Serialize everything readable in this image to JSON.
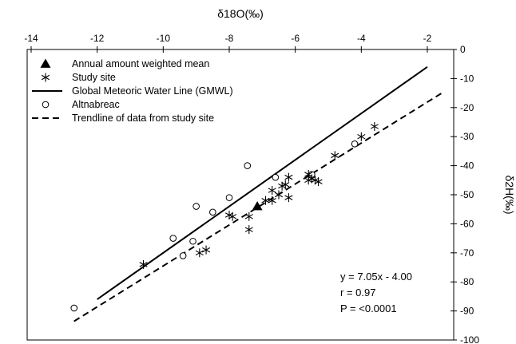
{
  "chart_data": {
    "type": "scatter",
    "xlabel": "δ18O(‰)",
    "ylabel": "δ2H(‰)",
    "x_axis_position": "top",
    "y_axis_position": "right",
    "xlim": [
      -14,
      -2
    ],
    "ylim": [
      -100,
      0
    ],
    "xticks": [
      "-14",
      "-12",
      "-10",
      "-8",
      "-6",
      "-4",
      "-2"
    ],
    "yticks": [
      "0",
      "-10",
      "-20",
      "-30",
      "-40",
      "-50",
      "-60",
      "-70",
      "-80",
      "-90",
      "-100"
    ],
    "grid": false,
    "legend_position": "top-left",
    "legend": [
      {
        "label": "Annual amount weighted mean",
        "marker": "filled-triangle"
      },
      {
        "label": "Study site",
        "marker": "asterisk"
      },
      {
        "label": "Global Meteoric Water Line (GMWL)",
        "marker": "solid-line"
      },
      {
        "label": "Altnabreac",
        "marker": "open-circle"
      },
      {
        "label": "Trendline of data from study site",
        "marker": "dashed-line"
      }
    ],
    "series": [
      {
        "name": "Annual amount weighted mean",
        "marker": "filled-triangle",
        "points": [
          [
            -7.15,
            -54
          ]
        ]
      },
      {
        "name": "Study site",
        "marker": "asterisk",
        "points": [
          [
            -10.6,
            -74
          ],
          [
            -8.9,
            -70
          ],
          [
            -8.7,
            -69
          ],
          [
            -8.0,
            -57
          ],
          [
            -7.9,
            -57.5
          ],
          [
            -7.4,
            -57.5
          ],
          [
            -7.4,
            -62
          ],
          [
            -6.9,
            -52
          ],
          [
            -6.7,
            -48.5
          ],
          [
            -6.7,
            -52
          ],
          [
            -6.5,
            -50
          ],
          [
            -6.4,
            -47
          ],
          [
            -6.3,
            -46.5
          ],
          [
            -6.2,
            -44
          ],
          [
            -6.2,
            -51
          ],
          [
            -5.6,
            -43
          ],
          [
            -5.6,
            -45
          ],
          [
            -5.5,
            -44.5
          ],
          [
            -5.4,
            -45
          ],
          [
            -5.3,
            -45.5
          ],
          [
            -4.8,
            -36.5
          ],
          [
            -4.0,
            -30
          ],
          [
            -3.6,
            -26.5
          ]
        ]
      },
      {
        "name": "Altnabreac",
        "marker": "open-circle",
        "points": [
          [
            -12.7,
            -89
          ],
          [
            -9.4,
            -71
          ],
          [
            -9.1,
            -66
          ],
          [
            -9.7,
            -65
          ],
          [
            -9.0,
            -54
          ],
          [
            -8.5,
            -56
          ],
          [
            -8.0,
            -51
          ],
          [
            -7.45,
            -40
          ],
          [
            -6.6,
            -44
          ],
          [
            -5.5,
            -43
          ],
          [
            -4.2,
            -32.5
          ]
        ]
      },
      {
        "name": "Global Meteoric Water Line (GMWL)",
        "line_style": "solid",
        "equation": {
          "slope": 8,
          "intercept": 10
        },
        "x_range": [
          -12,
          -2
        ]
      },
      {
        "name": "Trendline of data from study site",
        "line_style": "dashed",
        "equation": {
          "slope": 7.05,
          "intercept": -4.0
        },
        "x_range": [
          -12.7,
          -1.5
        ]
      }
    ],
    "annotations": [
      "y = 7.05x - 4.00",
      "r  = 0.97",
      "P = <0.0001"
    ]
  }
}
